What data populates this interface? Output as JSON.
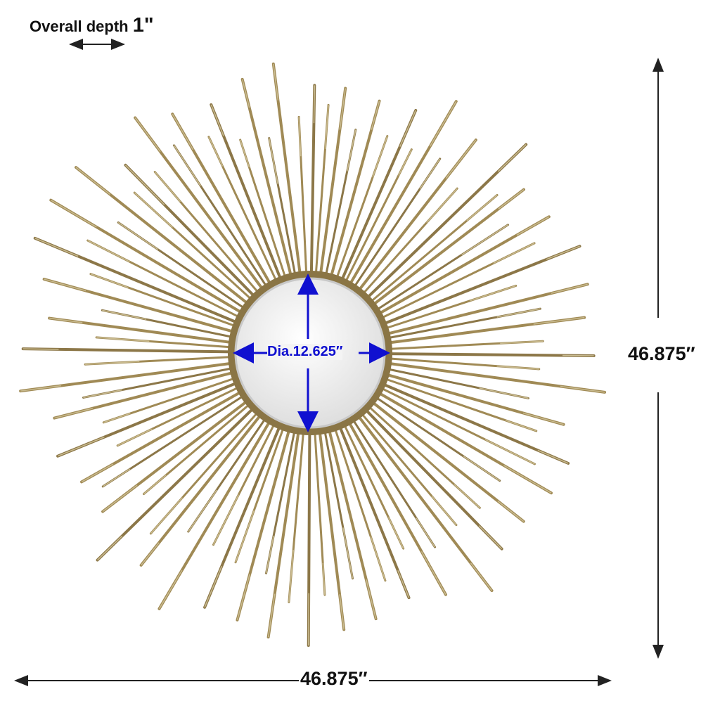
{
  "depth": {
    "label": "Overall depth",
    "value": "1\""
  },
  "height": {
    "value": "46.875″"
  },
  "width": {
    "value": "46.875″"
  },
  "mirror": {
    "diameter_label": "Dia.12.625″"
  },
  "colors": {
    "rays": "#a08a55",
    "arrow": "#222222",
    "diameter_arrow": "#1010d0",
    "frame": "#8a7545"
  }
}
